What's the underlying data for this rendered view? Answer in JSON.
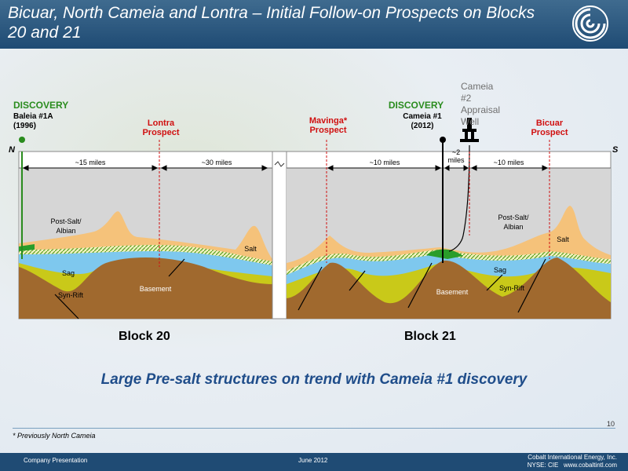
{
  "header": {
    "title": "Bicuar, North Cameia and Lontra – Initial Follow-on Prospects on Blocks 20 and 21"
  },
  "annotations": {
    "discovery_left": "DISCOVERY",
    "well_left": "Baleia #1A",
    "well_left_year": "(1996)",
    "lontra": "Lontra Prospect",
    "mavinga": "Mavinga* Prospect",
    "discovery_right": "DISCOVERY",
    "well_right": "Cameia #1",
    "well_right_year": "(2012)",
    "appraisal": "Cameia #2 Appraisal Well",
    "bicuar": "Bicuar Prospect",
    "north": "N",
    "south": "S"
  },
  "distances": {
    "d1": "~15 miles",
    "d2": "~30 miles",
    "d3": "~10 miles",
    "d4": "~2 miles",
    "d5": "~10 miles"
  },
  "layers": {
    "post_salt_left": "Post-Salt/ Albian",
    "salt_left": "Salt",
    "sag_left": "Sag",
    "synrift_left": "Syn-Rift",
    "basement_left": "Basement",
    "post_salt_right": "Post-Salt/ Albian",
    "salt_right": "Salt",
    "sag_right": "Sag",
    "synrift_right": "Syn-Rift",
    "basement_right": "Basement"
  },
  "blocks": {
    "left": "Block 20",
    "right": "Block 21"
  },
  "tagline": "Large Pre-salt structures on trend with Cameia #1 discovery",
  "page_number": "10",
  "footnote": "* Previously North Cameia",
  "footer": {
    "left": "Company Presentation",
    "center": "June 2012",
    "company": "Cobalt International Energy, Inc.",
    "ticker": "NYSE: CIE   www.cobaltintl.com"
  },
  "colors": {
    "header": "#1f4b74",
    "post_salt": "#d6d6d6",
    "salt": "#f5c27a",
    "sag": "#7ec8ee",
    "synrift": "#c9c919",
    "basement": "#a0692e",
    "prospect_line": "#d01010",
    "discovery_text": "#2a8c1e"
  }
}
